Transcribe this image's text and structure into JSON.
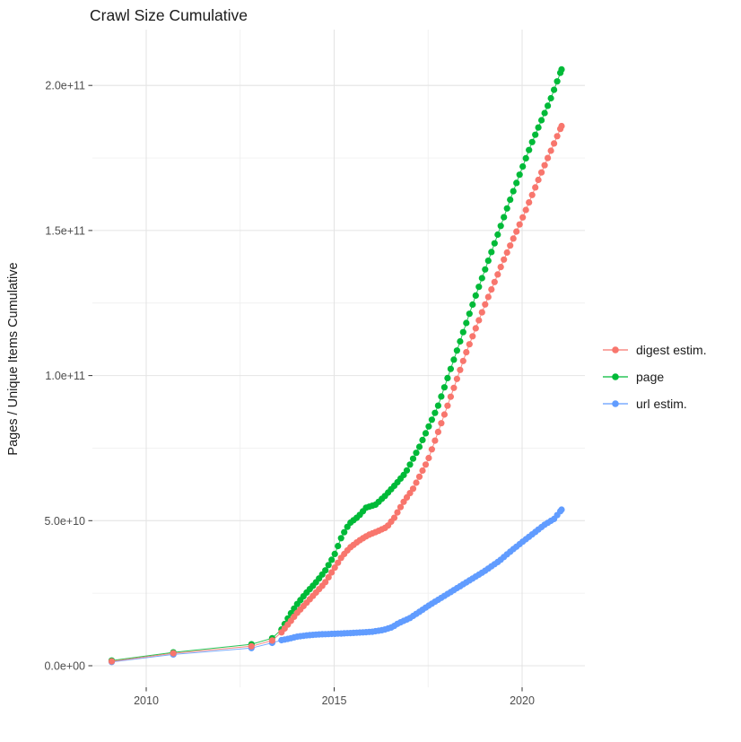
{
  "chart_data": {
    "type": "line",
    "title": "Crawl Size Cumulative",
    "xlabel": "",
    "ylabel": "Pages / Unique Items Cumulative",
    "grid": true,
    "legend_position": "right",
    "units": "point values are [year, pages in billions (1e9)]",
    "x_ticks": {
      "labels": [
        "2010",
        "2015",
        "2020"
      ],
      "major_years": [
        2010,
        2015,
        2020
      ],
      "minor_years": [
        2012.5,
        2017.5
      ]
    },
    "y_ticks": {
      "labels": [
        "0.0e+00",
        "5.0e+10",
        "1.0e+11",
        "1.5e+11",
        "2.0e+11"
      ],
      "major_e9": [
        0,
        50,
        100,
        150,
        200
      ],
      "minor_e9": [
        25,
        75,
        125,
        175
      ]
    },
    "x_range_years": [
      2008.5,
      2021.7
    ],
    "y_range_e9": [
      -10,
      212
    ],
    "marker_interval_years": 0.08333,
    "series": [
      {
        "name": "digest estim.",
        "color": "#F8766D",
        "sparse_points": [
          [
            2009.08,
            1.5
          ],
          [
            2010.72,
            4.3
          ],
          [
            2012.8,
            6.7
          ],
          [
            2013.35,
            8.7
          ]
        ],
        "anchor_points": [
          [
            2013.6,
            11.5
          ],
          [
            2013.82,
            15
          ],
          [
            2014.0,
            18
          ],
          [
            2014.25,
            21.5
          ],
          [
            2014.5,
            25
          ],
          [
            2014.75,
            28.5
          ],
          [
            2015.0,
            33.5
          ],
          [
            2015.2,
            37.5
          ],
          [
            2015.4,
            40.5
          ],
          [
            2015.65,
            43
          ],
          [
            2015.9,
            45
          ],
          [
            2016.15,
            46.3
          ],
          [
            2016.4,
            47.8
          ],
          [
            2016.6,
            51
          ],
          [
            2016.85,
            56.5
          ],
          [
            2017.1,
            61
          ],
          [
            2017.5,
            71
          ],
          [
            2018.0,
            89
          ],
          [
            2018.5,
            107.5
          ],
          [
            2019.0,
            124
          ],
          [
            2019.5,
            139.5
          ],
          [
            2020.0,
            154
          ],
          [
            2020.5,
            169.5
          ],
          [
            2021.05,
            186
          ]
        ]
      },
      {
        "name": "page",
        "color": "#00BA38",
        "sparse_points": [
          [
            2009.08,
            1.8
          ],
          [
            2010.72,
            4.6
          ],
          [
            2012.8,
            7.4
          ],
          [
            2013.35,
            9.5
          ]
        ],
        "anchor_points": [
          [
            2013.6,
            12.5
          ],
          [
            2013.82,
            17.5
          ],
          [
            2014.0,
            21
          ],
          [
            2014.25,
            25
          ],
          [
            2014.5,
            28.5
          ],
          [
            2014.75,
            32.5
          ],
          [
            2015.0,
            38
          ],
          [
            2015.2,
            44.5
          ],
          [
            2015.4,
            49
          ],
          [
            2015.65,
            51.5
          ],
          [
            2015.85,
            54.5
          ],
          [
            2016.1,
            55.5
          ],
          [
            2016.35,
            58.5
          ],
          [
            2016.6,
            62
          ],
          [
            2016.9,
            66.5
          ],
          [
            2017.25,
            75
          ],
          [
            2017.75,
            89
          ],
          [
            2018.25,
            108
          ],
          [
            2018.75,
            127
          ],
          [
            2019.25,
            145
          ],
          [
            2019.75,
            163
          ],
          [
            2020.25,
            180
          ],
          [
            2020.75,
            195
          ],
          [
            2021.05,
            205.5
          ]
        ]
      },
      {
        "name": "url estim.",
        "color": "#619CFF",
        "sparse_points": [
          [
            2009.08,
            1.3
          ],
          [
            2010.72,
            3.9
          ],
          [
            2012.8,
            6.1
          ],
          [
            2013.35,
            7.9
          ]
        ],
        "anchor_points": [
          [
            2013.6,
            8.8
          ],
          [
            2013.82,
            9.4
          ],
          [
            2014.0,
            10.0
          ],
          [
            2014.3,
            10.5
          ],
          [
            2014.6,
            10.8
          ],
          [
            2015.0,
            11.0
          ],
          [
            2015.5,
            11.3
          ],
          [
            2016.0,
            11.7
          ],
          [
            2016.3,
            12.3
          ],
          [
            2016.55,
            13.3
          ],
          [
            2016.7,
            14.6
          ],
          [
            2017.0,
            16.3
          ],
          [
            2017.5,
            20.6
          ],
          [
            2018.0,
            24.6
          ],
          [
            2018.5,
            28.6
          ],
          [
            2019.0,
            32.6
          ],
          [
            2019.4,
            36.2
          ],
          [
            2019.7,
            39.5
          ],
          [
            2020.0,
            42.6
          ],
          [
            2020.3,
            45.6
          ],
          [
            2020.6,
            48.6
          ],
          [
            2020.85,
            50.6
          ],
          [
            2021.05,
            53.8
          ]
        ]
      }
    ]
  }
}
